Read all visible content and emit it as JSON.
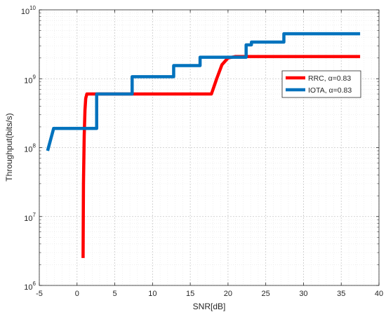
{
  "chart_data": {
    "type": "line",
    "title": "",
    "xlabel": "SNR[dB]",
    "ylabel": "Throughput(bits/s)",
    "x_scale": "linear",
    "y_scale": "log",
    "xlim": [
      -5,
      40
    ],
    "ylim": [
      1000000,
      10000000000
    ],
    "x_ticks": [
      -5,
      0,
      5,
      10,
      15,
      20,
      25,
      30,
      35,
      40
    ],
    "x_tick_labels": [
      "-5",
      "0",
      "5",
      "10",
      "15",
      "20",
      "25",
      "30",
      "35",
      "40"
    ],
    "y_ticks": [
      1000000,
      10000000,
      100000000,
      1000000000,
      10000000000
    ],
    "y_tick_labels": [
      {
        "base": "10",
        "exp": "6"
      },
      {
        "base": "10",
        "exp": "7"
      },
      {
        "base": "10",
        "exp": "8"
      },
      {
        "base": "10",
        "exp": "9"
      },
      {
        "base": "10",
        "exp": "10"
      }
    ],
    "grid": "major and minor, dotted",
    "legend_position": "right, inside axes",
    "series": [
      {
        "name": "RRC, α=0.83",
        "color": "#ff0000",
        "x": [
          0.8,
          0.85,
          0.95,
          1.05,
          1.15,
          1.3,
          17.8,
          18.5,
          19.2,
          20.0,
          21.0,
          37.5
        ],
        "y": [
          2500000,
          30000000,
          150000000,
          350000000,
          520000000,
          600000000,
          600000000,
          1000000000,
          1600000000,
          2000000000,
          2100000000,
          2100000000
        ]
      },
      {
        "name": "IOTA, α=0.83",
        "color": "#0072bd",
        "x": [
          -3.9,
          -3.1,
          -3.1,
          2.6,
          2.6,
          7.3,
          7.3,
          12.8,
          12.8,
          16.3,
          16.3,
          22.4,
          22.4,
          23.1,
          23.1,
          27.4,
          27.4,
          37.5
        ],
        "y": [
          90000000,
          190000000,
          190000000,
          190000000,
          600000000,
          600000000,
          1070000000,
          1070000000,
          1550000000,
          1550000000,
          2050000000,
          2050000000,
          3100000000,
          3100000000,
          3400000000,
          3400000000,
          4500000000,
          4500000000
        ]
      }
    ]
  }
}
